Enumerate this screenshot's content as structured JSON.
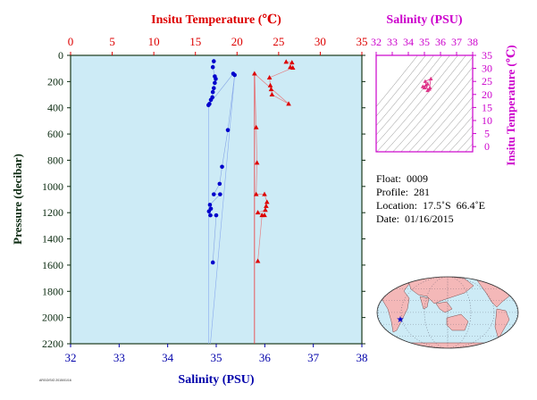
{
  "chart_data": [
    {
      "type": "scatter",
      "panel": "profile",
      "title_top": "Insitu Temperature (℃)",
      "xlabel": "Salinity (PSU)",
      "ylabel": "Pressure (decibar)",
      "temp_axis": {
        "range": [
          0,
          35
        ],
        "ticks": [
          0,
          5,
          10,
          15,
          20,
          25,
          30,
          35
        ]
      },
      "sal_axis": {
        "range": [
          32,
          38
        ],
        "ticks": [
          32,
          33,
          34,
          35,
          36,
          37,
          38
        ]
      },
      "pressure_axis": {
        "range": [
          0,
          2200
        ],
        "inverted": true,
        "ticks": [
          0,
          200,
          400,
          600,
          800,
          1000,
          1200,
          1400,
          1600,
          1800,
          2000,
          2200
        ]
      },
      "grid": false,
      "background_color": "#cdebf6",
      "series": [
        {
          "color": "#0000cc",
          "marker": "circle",
          "axis": "salinity",
          "points": [
            {
              "sal": 34.95,
              "p": 45
            },
            {
              "sal": 34.93,
              "p": 90
            },
            {
              "sal": 34.97,
              "p": 160
            },
            {
              "sal": 34.99,
              "p": 180
            },
            {
              "sal": 34.97,
              "p": 210
            },
            {
              "sal": 34.95,
              "p": 250
            },
            {
              "sal": 34.93,
              "p": 280
            },
            {
              "sal": 34.92,
              "p": 320
            },
            {
              "sal": 34.89,
              "p": 340
            },
            {
              "sal": 34.86,
              "p": 370
            },
            {
              "sal": 34.84,
              "p": 380
            },
            {
              "sal": 35.35,
              "p": 140
            },
            {
              "sal": 35.38,
              "p": 150
            },
            {
              "sal": 35.24,
              "p": 570
            },
            {
              "sal": 35.12,
              "p": 850
            },
            {
              "sal": 35.07,
              "p": 980
            },
            {
              "sal": 34.95,
              "p": 1060
            },
            {
              "sal": 35.08,
              "p": 1060
            },
            {
              "sal": 34.87,
              "p": 1140
            },
            {
              "sal": 34.89,
              "p": 1170
            },
            {
              "sal": 34.85,
              "p": 1190
            },
            {
              "sal": 34.88,
              "p": 1220
            },
            {
              "sal": 35.0,
              "p": 1220
            },
            {
              "sal": 34.93,
              "p": 1580
            }
          ]
        },
        {
          "color": "#dd0000",
          "marker": "triangle",
          "axis": "temperature",
          "points": [
            {
              "t": 25.9,
              "p": 50
            },
            {
              "t": 26.6,
              "p": 55
            },
            {
              "t": 26.4,
              "p": 90
            },
            {
              "t": 26.7,
              "p": 95
            },
            {
              "t": 23.9,
              "p": 170
            },
            {
              "t": 24.0,
              "p": 230
            },
            {
              "t": 24.1,
              "p": 260
            },
            {
              "t": 24.2,
              "p": 300
            },
            {
              "t": 26.2,
              "p": 370
            },
            {
              "t": 22.1,
              "p": 140
            },
            {
              "t": 22.3,
              "p": 550
            },
            {
              "t": 22.4,
              "p": 820
            },
            {
              "t": 22.3,
              "p": 1060
            },
            {
              "t": 23.3,
              "p": 1060
            },
            {
              "t": 23.6,
              "p": 1120
            },
            {
              "t": 23.5,
              "p": 1150
            },
            {
              "t": 23.4,
              "p": 1180
            },
            {
              "t": 22.5,
              "p": 1200
            },
            {
              "t": 23.3,
              "p": 1220
            },
            {
              "t": 23.0,
              "p": 1220
            },
            {
              "t": 22.5,
              "p": 1570
            }
          ]
        }
      ]
    },
    {
      "type": "scatter",
      "panel": "ts_diagram",
      "title": "Salinity (PSU)",
      "ylabel": "Insitu Temperature (℃)",
      "sal_axis": {
        "range": [
          32,
          38
        ],
        "ticks": [
          32,
          33,
          34,
          35,
          36,
          37,
          38
        ]
      },
      "temp_axis": {
        "range": [
          -2,
          35
        ],
        "ticks": [
          0,
          5,
          10,
          15,
          20,
          25,
          30,
          35
        ]
      },
      "color": "#dd3388",
      "points": [
        {
          "sal": 35.0,
          "t": 22.5
        },
        {
          "sal": 35.1,
          "t": 23.5
        },
        {
          "sal": 35.2,
          "t": 24.0
        },
        {
          "sal": 34.9,
          "t": 23.0
        },
        {
          "sal": 35.3,
          "t": 22.0
        },
        {
          "sal": 35.4,
          "t": 26.0
        },
        {
          "sal": 35.05,
          "t": 25.0
        },
        {
          "sal": 35.2,
          "t": 21.5
        },
        {
          "sal": 35.35,
          "t": 22.5
        }
      ]
    }
  ],
  "info": {
    "float": "Float:  0009",
    "profile": "Profile:  281",
    "location": "Location:  17.5˚S  66.4˚E",
    "date": "Date:  01/16/2015"
  },
  "map": {
    "land_color": "#f4b8b8",
    "ocean_color": "#cdebf6",
    "marker_color": "#0000cc"
  },
  "footer_text": "ARGO/SIO 2015/01/16"
}
